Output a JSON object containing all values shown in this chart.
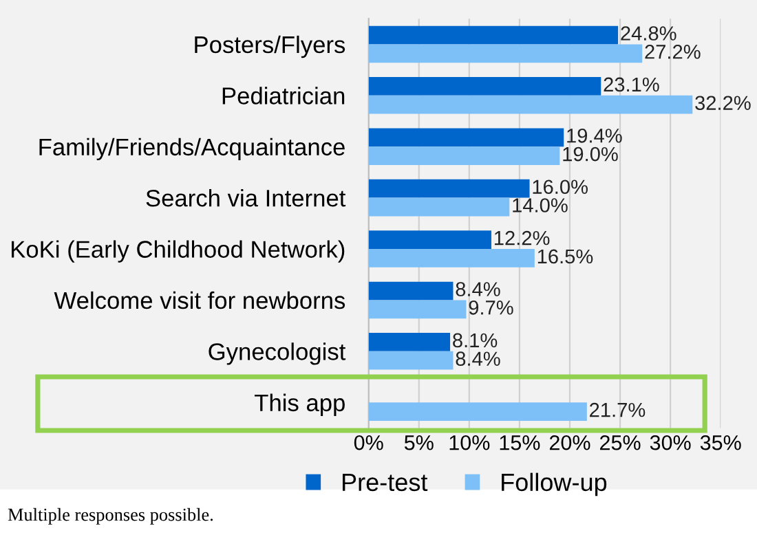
{
  "chart_data": {
    "type": "bar",
    "orientation": "horizontal",
    "categories": [
      "Posters/Flyers",
      "Pediatrician",
      "Family/Friends/Acquaintance",
      "Search via Internet",
      "KoKi (Early Childhood Network)",
      "Welcome visit for newborns",
      "Gynecologist",
      "This app"
    ],
    "series": [
      {
        "name": "Pre-test",
        "color": "#0066cc",
        "values": [
          24.8,
          23.1,
          19.4,
          16.0,
          12.2,
          8.4,
          8.1,
          null
        ],
        "value_labels": [
          "24.8%",
          "23.1%",
          "19.4%",
          "16.0%",
          "12.2%",
          "8.4%",
          "8.1%",
          null
        ]
      },
      {
        "name": "Follow-up",
        "color": "#7cc0f7",
        "values": [
          27.2,
          32.2,
          19.0,
          14.0,
          16.5,
          9.7,
          8.4,
          21.7
        ],
        "value_labels": [
          "27.2%",
          "32.2%",
          "19.0%",
          "14.0%",
          "16.5%",
          "9.7%",
          "8.4%",
          "21.7%"
        ]
      }
    ],
    "xlim": [
      0,
      35
    ],
    "xticks": [
      {
        "value": 0,
        "label": "0%"
      },
      {
        "value": 5,
        "label": "5%"
      },
      {
        "value": 10,
        "label": "10%"
      },
      {
        "value": 15,
        "label": "15%"
      },
      {
        "value": 20,
        "label": "20%"
      },
      {
        "value": 25,
        "label": "25%"
      },
      {
        "value": 30,
        "label": "30%"
      },
      {
        "value": 35,
        "label": "35%"
      }
    ],
    "grid": "x",
    "legend": "bottom",
    "annotations": [
      "Multiple responses possible."
    ]
  }
}
